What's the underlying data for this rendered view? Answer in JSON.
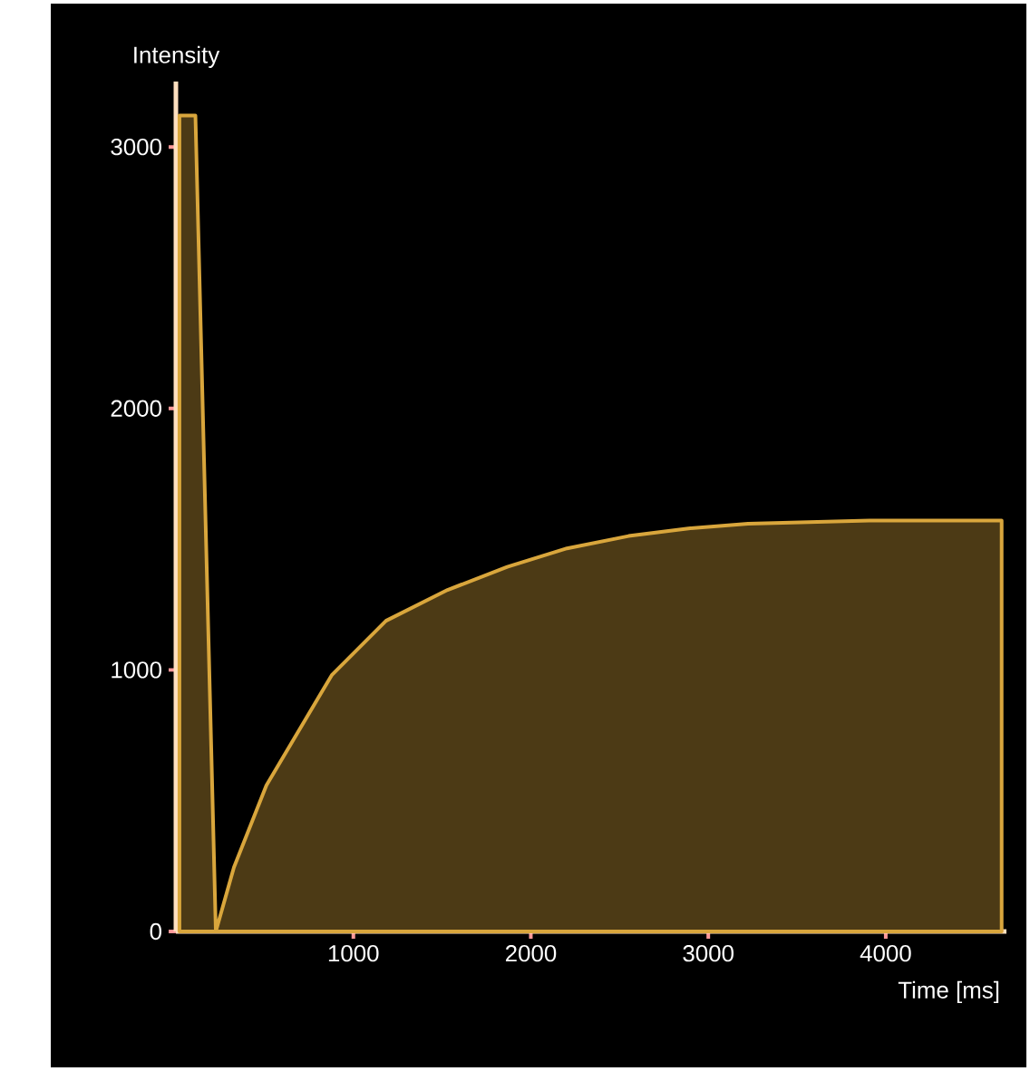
{
  "chart_data": {
    "type": "area",
    "xlabel": "Time [ms]",
    "ylabel": "Intensity",
    "xlim": [
      0,
      4680
    ],
    "ylim": [
      0,
      3250
    ],
    "xticks": [
      1000,
      2000,
      3000,
      4000
    ],
    "yticks": [
      0,
      1000,
      2000,
      3000
    ],
    "series": [
      {
        "color": "#d9a63c",
        "x": [
          20,
          20,
          110,
          225,
          327,
          510,
          878,
          1184,
          1531,
          1867,
          2204,
          2551,
          2888,
          3224,
          3908,
          4653
        ],
        "values": [
          0,
          3120,
          3120,
          0,
          245,
          559,
          980,
          1188,
          1306,
          1394,
          1465,
          1512,
          1541,
          1559,
          1571,
          1571
        ]
      }
    ]
  }
}
